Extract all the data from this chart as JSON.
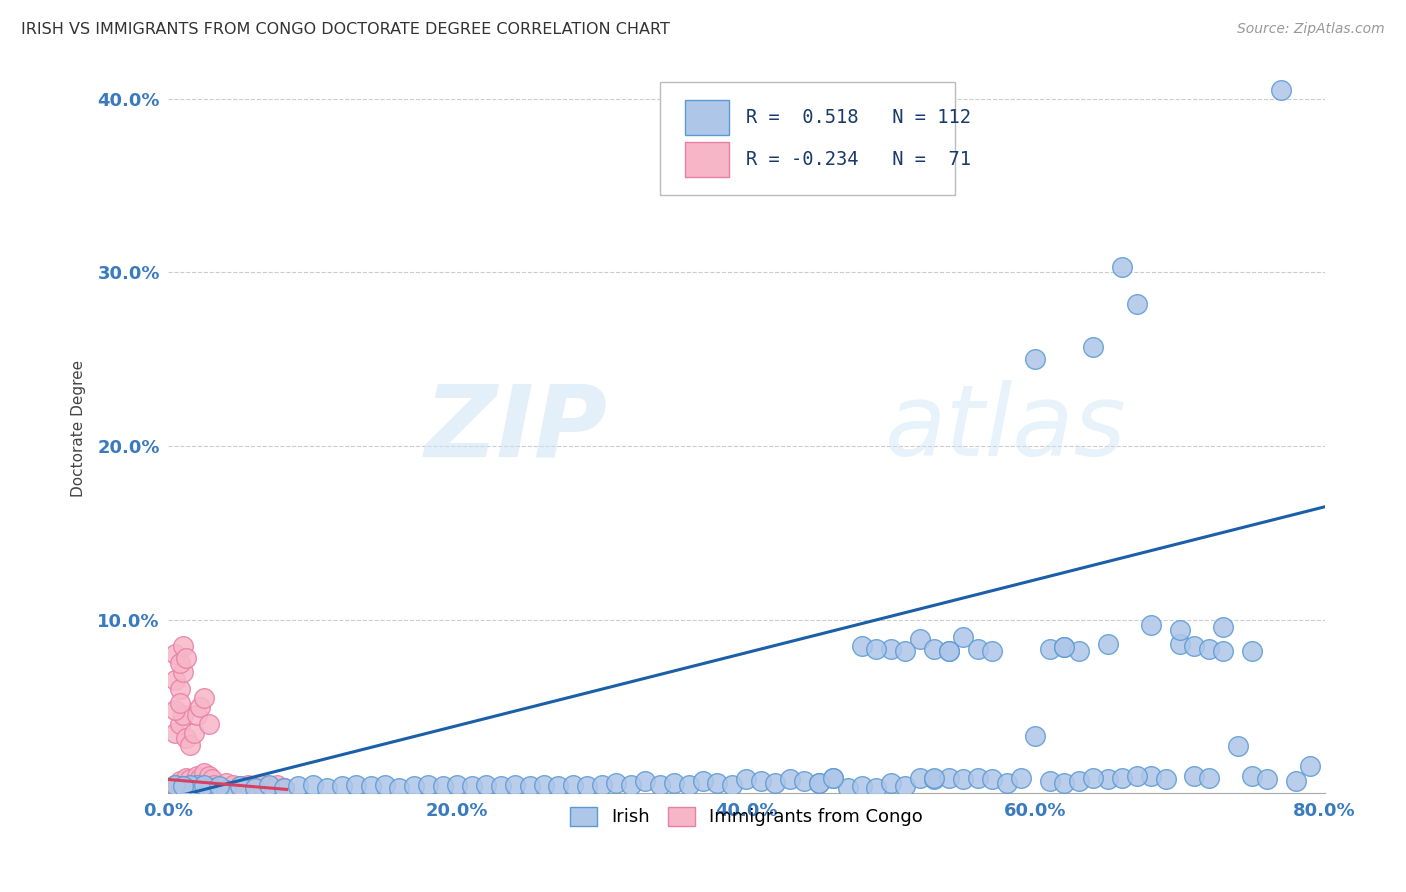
{
  "title": "IRISH VS IMMIGRANTS FROM CONGO DOCTORATE DEGREE CORRELATION CHART",
  "source": "Source: ZipAtlas.com",
  "ylabel": "Doctorate Degree",
  "xlim": [
    0,
    0.8
  ],
  "ylim": [
    0,
    0.42
  ],
  "xticks": [
    0.0,
    0.2,
    0.4,
    0.6,
    0.8
  ],
  "xtick_labels": [
    "0.0%",
    "20.0%",
    "40.0%",
    "60.0%",
    "80.0%"
  ],
  "yticks": [
    0.0,
    0.1,
    0.2,
    0.3,
    0.4
  ],
  "ytick_labels": [
    "",
    "10.0%",
    "20.0%",
    "30.0%",
    "40.0%"
  ],
  "irish_color": "#aec6e8",
  "irish_edge_color": "#5b9bd5",
  "congo_color": "#f7b6c8",
  "congo_edge_color": "#e87fa8",
  "irish_line_color": "#1a5fa8",
  "congo_line_color": "#d94060",
  "r_irish": 0.518,
  "n_irish": 112,
  "r_congo": -0.234,
  "n_congo": 71,
  "watermark_zip": "ZIP",
  "watermark_atlas": "atlas",
  "background_color": "#ffffff",
  "irish_scatter_x": [
    0.02,
    0.03,
    0.04,
    0.05,
    0.06,
    0.07,
    0.08,
    0.09,
    0.1,
    0.11,
    0.12,
    0.13,
    0.14,
    0.15,
    0.16,
    0.17,
    0.18,
    0.19,
    0.2,
    0.21,
    0.22,
    0.23,
    0.24,
    0.25,
    0.26,
    0.27,
    0.28,
    0.29,
    0.3,
    0.31,
    0.32,
    0.33,
    0.34,
    0.35,
    0.36,
    0.37,
    0.38,
    0.39,
    0.4,
    0.41,
    0.42,
    0.43,
    0.44,
    0.45,
    0.46,
    0.47,
    0.48,
    0.49,
    0.5,
    0.51,
    0.52,
    0.53,
    0.54,
    0.55,
    0.56,
    0.57,
    0.58,
    0.59,
    0.61,
    0.62,
    0.63,
    0.65,
    0.68,
    0.69,
    0.71,
    0.72,
    0.74,
    0.75,
    0.76,
    0.78,
    0.79,
    0.015,
    0.025,
    0.035,
    0.005,
    0.01,
    0.52,
    0.53,
    0.54,
    0.55,
    0.6,
    0.61,
    0.62,
    0.63,
    0.64,
    0.65,
    0.66,
    0.67,
    0.68,
    0.7,
    0.71,
    0.72,
    0.73,
    0.75,
    0.6,
    0.64,
    0.66,
    0.67,
    0.7,
    0.73,
    0.62,
    0.5,
    0.51,
    0.48,
    0.49,
    0.56,
    0.57,
    0.77,
    0.45,
    0.46,
    0.53,
    0.54
  ],
  "irish_scatter_y": [
    0.005,
    0.003,
    0.002,
    0.004,
    0.003,
    0.005,
    0.003,
    0.004,
    0.005,
    0.003,
    0.004,
    0.005,
    0.004,
    0.005,
    0.003,
    0.004,
    0.005,
    0.004,
    0.005,
    0.004,
    0.005,
    0.004,
    0.005,
    0.004,
    0.005,
    0.004,
    0.005,
    0.004,
    0.005,
    0.006,
    0.005,
    0.007,
    0.005,
    0.006,
    0.005,
    0.007,
    0.006,
    0.005,
    0.008,
    0.007,
    0.006,
    0.008,
    0.007,
    0.006,
    0.009,
    0.003,
    0.004,
    0.003,
    0.006,
    0.004,
    0.009,
    0.008,
    0.009,
    0.008,
    0.009,
    0.008,
    0.006,
    0.009,
    0.007,
    0.006,
    0.007,
    0.008,
    0.01,
    0.008,
    0.01,
    0.009,
    0.027,
    0.01,
    0.008,
    0.007,
    0.016,
    0.005,
    0.005,
    0.004,
    0.005,
    0.004,
    0.089,
    0.083,
    0.082,
    0.09,
    0.25,
    0.083,
    0.084,
    0.082,
    0.257,
    0.086,
    0.303,
    0.282,
    0.097,
    0.086,
    0.085,
    0.083,
    0.082,
    0.082,
    0.033,
    0.009,
    0.009,
    0.01,
    0.094,
    0.096,
    0.084,
    0.083,
    0.082,
    0.085,
    0.083,
    0.083,
    0.082,
    0.405,
    0.006,
    0.009,
    0.009,
    0.082
  ],
  "congo_scatter_x": [
    0.005,
    0.008,
    0.01,
    0.012,
    0.015,
    0.018,
    0.02,
    0.022,
    0.025,
    0.028,
    0.03,
    0.032,
    0.005,
    0.008,
    0.01,
    0.012,
    0.015,
    0.018,
    0.02,
    0.022,
    0.025,
    0.028,
    0.005,
    0.008,
    0.01,
    0.005,
    0.008,
    0.01,
    0.012,
    0.005,
    0.008,
    0.005,
    0.006,
    0.007,
    0.009,
    0.01,
    0.011,
    0.013,
    0.014,
    0.016,
    0.017,
    0.019,
    0.02,
    0.021,
    0.023,
    0.024,
    0.026,
    0.027,
    0.029,
    0.03,
    0.031,
    0.033,
    0.034,
    0.035,
    0.04,
    0.045,
    0.05,
    0.055,
    0.06,
    0.065,
    0.07,
    0.075,
    0.04,
    0.045,
    0.05,
    0.055,
    0.06,
    0.065,
    0.07,
    0.075,
    0.08
  ],
  "congo_scatter_y": [
    0.005,
    0.007,
    0.006,
    0.009,
    0.008,
    0.006,
    0.01,
    0.009,
    0.012,
    0.01,
    0.008,
    0.005,
    0.035,
    0.04,
    0.045,
    0.032,
    0.028,
    0.035,
    0.045,
    0.05,
    0.055,
    0.04,
    0.065,
    0.06,
    0.07,
    0.08,
    0.075,
    0.085,
    0.078,
    0.048,
    0.052,
    0.003,
    0.003,
    0.004,
    0.003,
    0.004,
    0.003,
    0.004,
    0.003,
    0.004,
    0.003,
    0.004,
    0.003,
    0.003,
    0.002,
    0.003,
    0.002,
    0.003,
    0.002,
    0.003,
    0.002,
    0.003,
    0.002,
    0.003,
    0.002,
    0.003,
    0.002,
    0.003,
    0.002,
    0.003,
    0.002,
    0.003,
    0.006,
    0.005,
    0.004,
    0.005,
    0.004,
    0.005,
    0.004,
    0.005,
    0.003
  ]
}
